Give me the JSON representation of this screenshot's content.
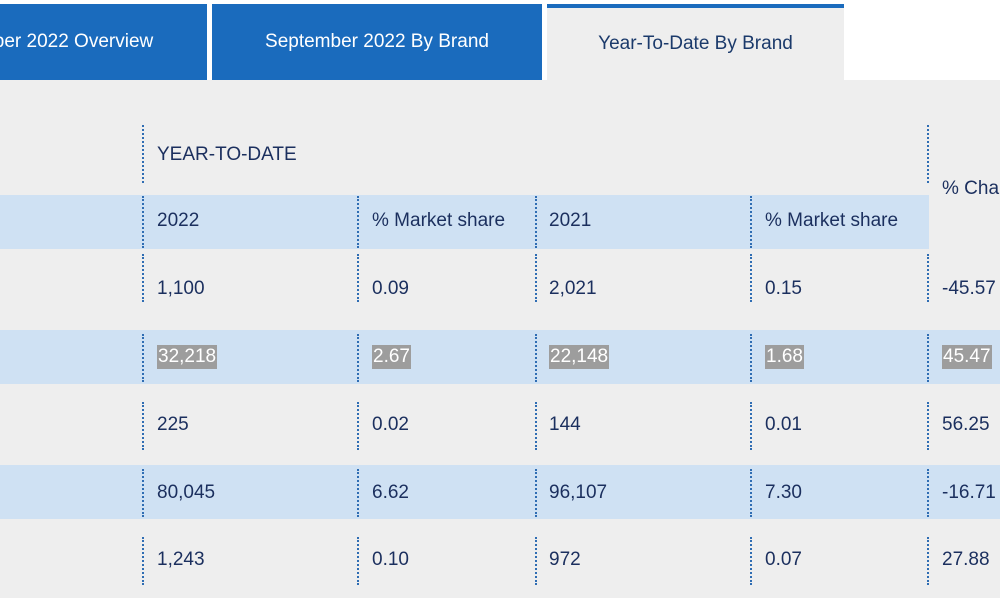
{
  "tabs": [
    {
      "label": "ber 2022 Overview",
      "active": false
    },
    {
      "label": "September 2022 By Brand",
      "active": false
    },
    {
      "label": "Year-To-Date By Brand",
      "active": true
    }
  ],
  "table": {
    "group_header": "YEAR-TO-DATE",
    "change_header": "% Cha",
    "columns": [
      "2022",
      "% Market share",
      "2021",
      "% Market share"
    ],
    "rows": [
      {
        "cells": [
          "1,100",
          "0.09",
          "2,021",
          "0.15",
          "-45.57"
        ],
        "highlighted": false
      },
      {
        "cells": [
          "32,218",
          "2.67",
          "22,148",
          "1.68",
          "45.47"
        ],
        "highlighted": true
      },
      {
        "cells": [
          "225",
          "0.02",
          "144",
          "0.01",
          "56.25"
        ],
        "highlighted": false
      },
      {
        "cells": [
          "80,045",
          "6.62",
          "96,107",
          "7.30",
          "-16.71"
        ],
        "highlighted": false
      },
      {
        "cells": [
          "1,243",
          "0.10",
          "972",
          "0.07",
          "27.88"
        ],
        "highlighted": false
      }
    ]
  },
  "colors": {
    "tab_active_bg": "#eeeeee",
    "tab_inactive_bg": "#1a6bbd",
    "band_bg": "#cfe1f3",
    "highlight_bg": "#9d9d9d",
    "text": "#1b2f5e"
  }
}
